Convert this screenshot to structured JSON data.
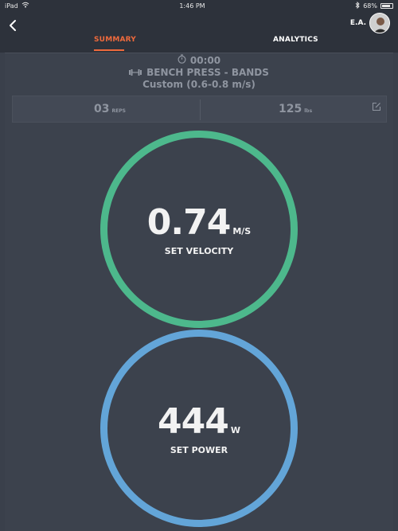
{
  "status_bar": {
    "device": "iPad",
    "time": "1:46 PM",
    "battery_percent": "68%",
    "battery_level": 0.68
  },
  "nav": {
    "user_initials": "E.A.",
    "tabs": [
      {
        "label": "SUMMARY",
        "active": true
      },
      {
        "label": "ANALYTICS",
        "active": false
      }
    ],
    "accent_color": "#ef6a3c"
  },
  "workout": {
    "timer": "00:00",
    "exercise": "BENCH PRESS - BANDS",
    "preset": "Custom (0.6-0.8 m/s)",
    "reps_value": "03",
    "reps_unit": "REPS",
    "weight_value": "125",
    "weight_unit": "lbs"
  },
  "metrics": {
    "velocity": {
      "value": "0.74",
      "unit": "M/S",
      "label": "SET VELOCITY",
      "color": "#4db88c"
    },
    "power": {
      "value": "444",
      "unit": "W",
      "label": "SET POWER",
      "color": "#63a5d8"
    }
  },
  "icons": [
    "wifi-icon",
    "bluetooth-icon",
    "battery-icon",
    "back-chevron-icon",
    "stopwatch-icon",
    "barbell-icon",
    "edit-icon"
  ]
}
